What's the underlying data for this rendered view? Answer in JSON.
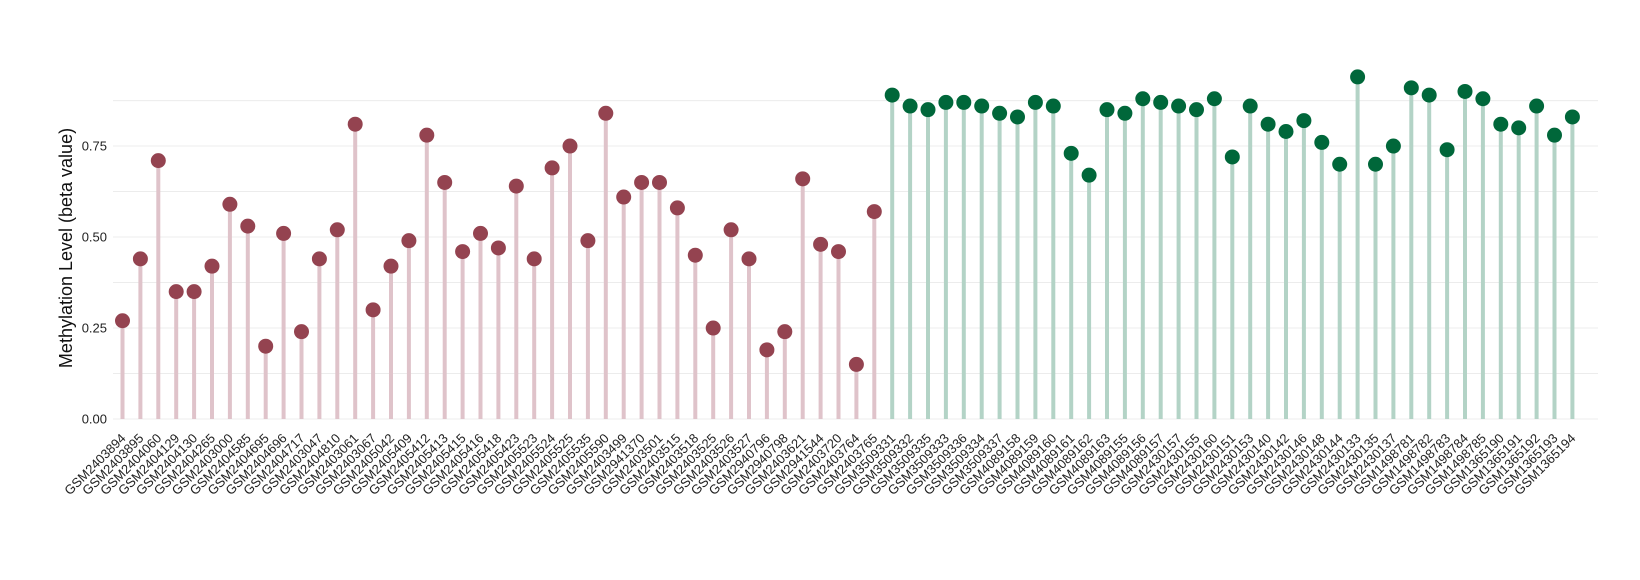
{
  "chart_data": {
    "type": "lollipop",
    "ylabel": "Methylation Level (beta value)",
    "xlabel": "",
    "title": "",
    "ylim": [
      0,
      0.97
    ],
    "yticks": [
      0,
      0.25,
      0.5,
      0.75
    ],
    "ytick_labels": [
      "0.00",
      "0.25",
      "0.50",
      "0.75"
    ],
    "grid": "horizontal",
    "colors": {
      "group_a_point": "#944350",
      "group_a_stem": "#dfc3ca",
      "group_b_point": "#00673a",
      "group_b_stem": "#b3d3c6"
    },
    "samples": [
      {
        "id": "GSM2403894",
        "value": 0.27,
        "group": "a"
      },
      {
        "id": "GSM2403895",
        "value": 0.44,
        "group": "a"
      },
      {
        "id": "GSM2404060",
        "value": 0.71,
        "group": "a"
      },
      {
        "id": "GSM2404129",
        "value": 0.35,
        "group": "a"
      },
      {
        "id": "GSM2404130",
        "value": 0.35,
        "group": "a"
      },
      {
        "id": "GSM2404265",
        "value": 0.42,
        "group": "a"
      },
      {
        "id": "GSM2403000",
        "value": 0.59,
        "group": "a"
      },
      {
        "id": "GSM2404585",
        "value": 0.53,
        "group": "a"
      },
      {
        "id": "GSM2404695",
        "value": 0.2,
        "group": "a"
      },
      {
        "id": "GSM2404696",
        "value": 0.51,
        "group": "a"
      },
      {
        "id": "GSM2404717",
        "value": 0.24,
        "group": "a"
      },
      {
        "id": "GSM2403047",
        "value": 0.44,
        "group": "a"
      },
      {
        "id": "GSM2404810",
        "value": 0.52,
        "group": "a"
      },
      {
        "id": "GSM2403061",
        "value": 0.81,
        "group": "a"
      },
      {
        "id": "GSM2403067",
        "value": 0.3,
        "group": "a"
      },
      {
        "id": "GSM2405042",
        "value": 0.42,
        "group": "a"
      },
      {
        "id": "GSM2405409",
        "value": 0.49,
        "group": "a"
      },
      {
        "id": "GSM2405412",
        "value": 0.78,
        "group": "a"
      },
      {
        "id": "GSM2405413",
        "value": 0.65,
        "group": "a"
      },
      {
        "id": "GSM2405415",
        "value": 0.46,
        "group": "a"
      },
      {
        "id": "GSM2405416",
        "value": 0.51,
        "group": "a"
      },
      {
        "id": "GSM2405418",
        "value": 0.47,
        "group": "a"
      },
      {
        "id": "GSM2405423",
        "value": 0.64,
        "group": "a"
      },
      {
        "id": "GSM2405523",
        "value": 0.44,
        "group": "a"
      },
      {
        "id": "GSM2405524",
        "value": 0.69,
        "group": "a"
      },
      {
        "id": "GSM2405525",
        "value": 0.75,
        "group": "a"
      },
      {
        "id": "GSM2405535",
        "value": 0.49,
        "group": "a"
      },
      {
        "id": "GSM2405590",
        "value": 0.84,
        "group": "a"
      },
      {
        "id": "GSM2403499",
        "value": 0.61,
        "group": "a"
      },
      {
        "id": "GSM2941370",
        "value": 0.65,
        "group": "a"
      },
      {
        "id": "GSM2403501",
        "value": 0.65,
        "group": "a"
      },
      {
        "id": "GSM2403515",
        "value": 0.58,
        "group": "a"
      },
      {
        "id": "GSM2403518",
        "value": 0.45,
        "group": "a"
      },
      {
        "id": "GSM2403525",
        "value": 0.25,
        "group": "a"
      },
      {
        "id": "GSM2403526",
        "value": 0.52,
        "group": "a"
      },
      {
        "id": "GSM2403527",
        "value": 0.44,
        "group": "a"
      },
      {
        "id": "GSM2940796",
        "value": 0.19,
        "group": "a"
      },
      {
        "id": "GSM2940798",
        "value": 0.24,
        "group": "a"
      },
      {
        "id": "GSM2403621",
        "value": 0.66,
        "group": "a"
      },
      {
        "id": "GSM2941544",
        "value": 0.48,
        "group": "a"
      },
      {
        "id": "GSM2403720",
        "value": 0.46,
        "group": "a"
      },
      {
        "id": "GSM2403764",
        "value": 0.15,
        "group": "a"
      },
      {
        "id": "GSM2403765",
        "value": 0.57,
        "group": "a"
      },
      {
        "id": "GSM3509331",
        "value": 0.89,
        "group": "b"
      },
      {
        "id": "GSM3509332",
        "value": 0.86,
        "group": "b"
      },
      {
        "id": "GSM3509335",
        "value": 0.85,
        "group": "b"
      },
      {
        "id": "GSM3509333",
        "value": 0.87,
        "group": "b"
      },
      {
        "id": "GSM3509336",
        "value": 0.87,
        "group": "b"
      },
      {
        "id": "GSM3509334",
        "value": 0.86,
        "group": "b"
      },
      {
        "id": "GSM3509337",
        "value": 0.84,
        "group": "b"
      },
      {
        "id": "GSM4089158",
        "value": 0.83,
        "group": "b"
      },
      {
        "id": "GSM4089159",
        "value": 0.87,
        "group": "b"
      },
      {
        "id": "GSM4089160",
        "value": 0.86,
        "group": "b"
      },
      {
        "id": "GSM4089161",
        "value": 0.73,
        "group": "b"
      },
      {
        "id": "GSM4089162",
        "value": 0.67,
        "group": "b"
      },
      {
        "id": "GSM4089163",
        "value": 0.85,
        "group": "b"
      },
      {
        "id": "GSM4089155",
        "value": 0.84,
        "group": "b"
      },
      {
        "id": "GSM4089156",
        "value": 0.88,
        "group": "b"
      },
      {
        "id": "GSM4089157",
        "value": 0.87,
        "group": "b"
      },
      {
        "id": "GSM2430157",
        "value": 0.86,
        "group": "b"
      },
      {
        "id": "GSM2430155",
        "value": 0.85,
        "group": "b"
      },
      {
        "id": "GSM2430160",
        "value": 0.88,
        "group": "b"
      },
      {
        "id": "GSM2430151",
        "value": 0.72,
        "group": "b"
      },
      {
        "id": "GSM2430153",
        "value": 0.86,
        "group": "b"
      },
      {
        "id": "GSM2430140",
        "value": 0.81,
        "group": "b"
      },
      {
        "id": "GSM2430142",
        "value": 0.79,
        "group": "b"
      },
      {
        "id": "GSM2430146",
        "value": 0.82,
        "group": "b"
      },
      {
        "id": "GSM2430148",
        "value": 0.76,
        "group": "b"
      },
      {
        "id": "GSM2430144",
        "value": 0.7,
        "group": "b"
      },
      {
        "id": "GSM2430133",
        "value": 0.94,
        "group": "b"
      },
      {
        "id": "GSM2430135",
        "value": 0.7,
        "group": "b"
      },
      {
        "id": "GSM2430137",
        "value": 0.75,
        "group": "b"
      },
      {
        "id": "GSM1498781",
        "value": 0.91,
        "group": "b"
      },
      {
        "id": "GSM1498782",
        "value": 0.89,
        "group": "b"
      },
      {
        "id": "GSM1498783",
        "value": 0.74,
        "group": "b"
      },
      {
        "id": "GSM1498784",
        "value": 0.9,
        "group": "b"
      },
      {
        "id": "GSM1498785",
        "value": 0.88,
        "group": "b"
      },
      {
        "id": "GSM1365190",
        "value": 0.81,
        "group": "b"
      },
      {
        "id": "GSM1365191",
        "value": 0.8,
        "group": "b"
      },
      {
        "id": "GSM1365192",
        "value": 0.86,
        "group": "b"
      },
      {
        "id": "GSM1365193",
        "value": 0.78,
        "group": "b"
      },
      {
        "id": "GSM1365194",
        "value": 0.83,
        "group": "b"
      }
    ]
  }
}
